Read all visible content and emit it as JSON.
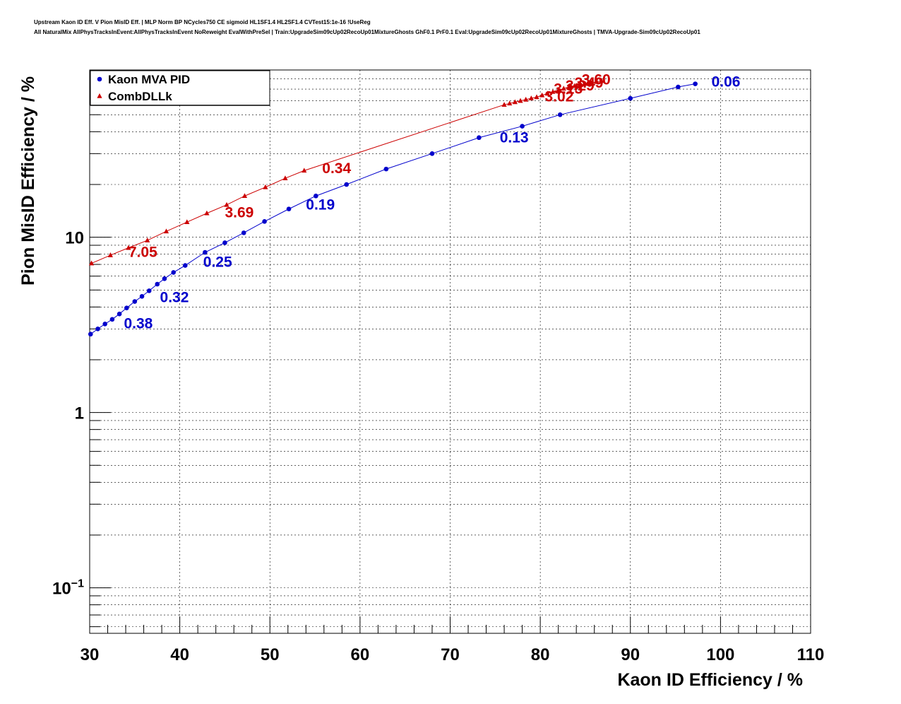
{
  "title_lines": [
    "Upstream Kaon ID Eff. V Pion MisID Eff. | MLP Norm BP NCycles750 CE sigmoid HL1SF1.4 HL2SF1.4 CVTest15:1e-16 !UseReg",
    "All NaturalMix AllPhysTracksInEvent:AllPhysTracksInEvent NoReweight EvalWithPreSel | Train:UpgradeSim09cUp02RecoUp01MixtureGhosts GhF0.1 PrF0.1 Eval:UpgradeSim09cUp02RecoUp01MixtureGhosts | TMVA-Upgrade-Sim09cUp02RecoUp01"
  ],
  "chart_data": {
    "type": "line",
    "xlabel": "Kaon ID Efficiency / %",
    "ylabel": "Pion MisID Efficiency / %",
    "xlim": [
      30,
      110
    ],
    "ylim": [
      0.055,
      90
    ],
    "y_scale": "log",
    "grid": true,
    "legend_position": "top-left",
    "x_ticks": [
      "30",
      "40",
      "50",
      "60",
      "70",
      "80",
      "90",
      "100",
      "110"
    ],
    "y_ticks": [
      {
        "value": 1,
        "base": "1",
        "exp": ""
      },
      {
        "value": 10,
        "base": "10",
        "exp": ""
      },
      {
        "value": 0.1,
        "base": "10",
        "exp": "−1"
      }
    ],
    "series": [
      {
        "name": "Kaon MVA PID",
        "color": "#0000cc",
        "marker": "circle",
        "x": [
          30.1,
          30.9,
          31.7,
          32.5,
          33.3,
          34.1,
          35.0,
          35.8,
          36.6,
          37.5,
          38.3,
          39.3,
          40.6,
          42.8,
          45.0,
          47.1,
          49.4,
          52.1,
          55.1,
          58.5,
          62.9,
          68.0,
          73.2,
          78.0,
          82.2,
          90.0,
          95.3,
          97.2
        ],
        "y": [
          2.8,
          3.0,
          3.2,
          3.4,
          3.65,
          3.95,
          4.3,
          4.6,
          4.95,
          5.4,
          5.8,
          6.3,
          6.9,
          8.2,
          9.3,
          10.6,
          12.3,
          14.5,
          17.2,
          20.0,
          24.5,
          30.0,
          37.0,
          43.0,
          50.0,
          62.0,
          72.0,
          75.0
        ]
      },
      {
        "name": "CombDLLk",
        "color": "#cc0000",
        "marker": "triangle",
        "x": [
          30.2,
          32.3,
          34.3,
          36.4,
          38.5,
          40.8,
          43.0,
          45.2,
          47.2,
          49.5,
          51.7,
          53.8,
          76.0,
          76.6,
          77.2,
          77.8,
          78.4,
          79.0,
          79.6,
          80.2,
          80.8,
          81.4,
          82.0,
          82.6,
          83.2,
          83.8,
          84.4,
          85.0,
          85.6,
          86.2,
          86.8
        ],
        "y": [
          7.1,
          7.9,
          8.7,
          9.6,
          10.8,
          12.2,
          13.7,
          15.3,
          17.2,
          19.3,
          21.7,
          24.0,
          57.0,
          58.0,
          59.0,
          60.0,
          61.0,
          62.0,
          63.0,
          64.5,
          66.0,
          67.5,
          69.0,
          70.5,
          72.0,
          73.0,
          74.0,
          75.0,
          76.0,
          77.0,
          78.0
        ]
      }
    ],
    "annotations": [
      {
        "text": "0.06",
        "x": 99.0,
        "y": 78,
        "color": "#0000cc"
      },
      {
        "text": "0.13",
        "x": 75.5,
        "y": 37.5,
        "color": "#0000cc"
      },
      {
        "text": "0.19",
        "x": 54.0,
        "y": 15.5,
        "color": "#0000cc"
      },
      {
        "text": "0.25",
        "x": 42.6,
        "y": 7.3,
        "color": "#0000cc"
      },
      {
        "text": "0.32",
        "x": 37.8,
        "y": 4.6,
        "color": "#0000cc"
      },
      {
        "text": "0.38",
        "x": 33.8,
        "y": 3.25,
        "color": "#0000cc"
      },
      {
        "text": "7.05",
        "x": 34.3,
        "y": 8.3,
        "color": "#cc0000"
      },
      {
        "text": "3.69",
        "x": 45.0,
        "y": 14.0,
        "color": "#cc0000"
      },
      {
        "text": "0.34",
        "x": 55.8,
        "y": 25.0,
        "color": "#cc0000"
      },
      {
        "text": "3.02",
        "x": 80.5,
        "y": 64.0,
        "color": "#cc0000"
      },
      {
        "text": "3.15",
        "x": 81.5,
        "y": 71.0,
        "color": "#cc0000"
      },
      {
        "text": "3.29",
        "x": 82.8,
        "y": 74.0,
        "color": "#cc0000"
      },
      {
        "text": "3.49",
        "x": 83.8,
        "y": 77.0,
        "color": "#cc0000"
      },
      {
        "text": "3.60",
        "x": 84.6,
        "y": 80.0,
        "color": "#cc0000"
      }
    ]
  }
}
